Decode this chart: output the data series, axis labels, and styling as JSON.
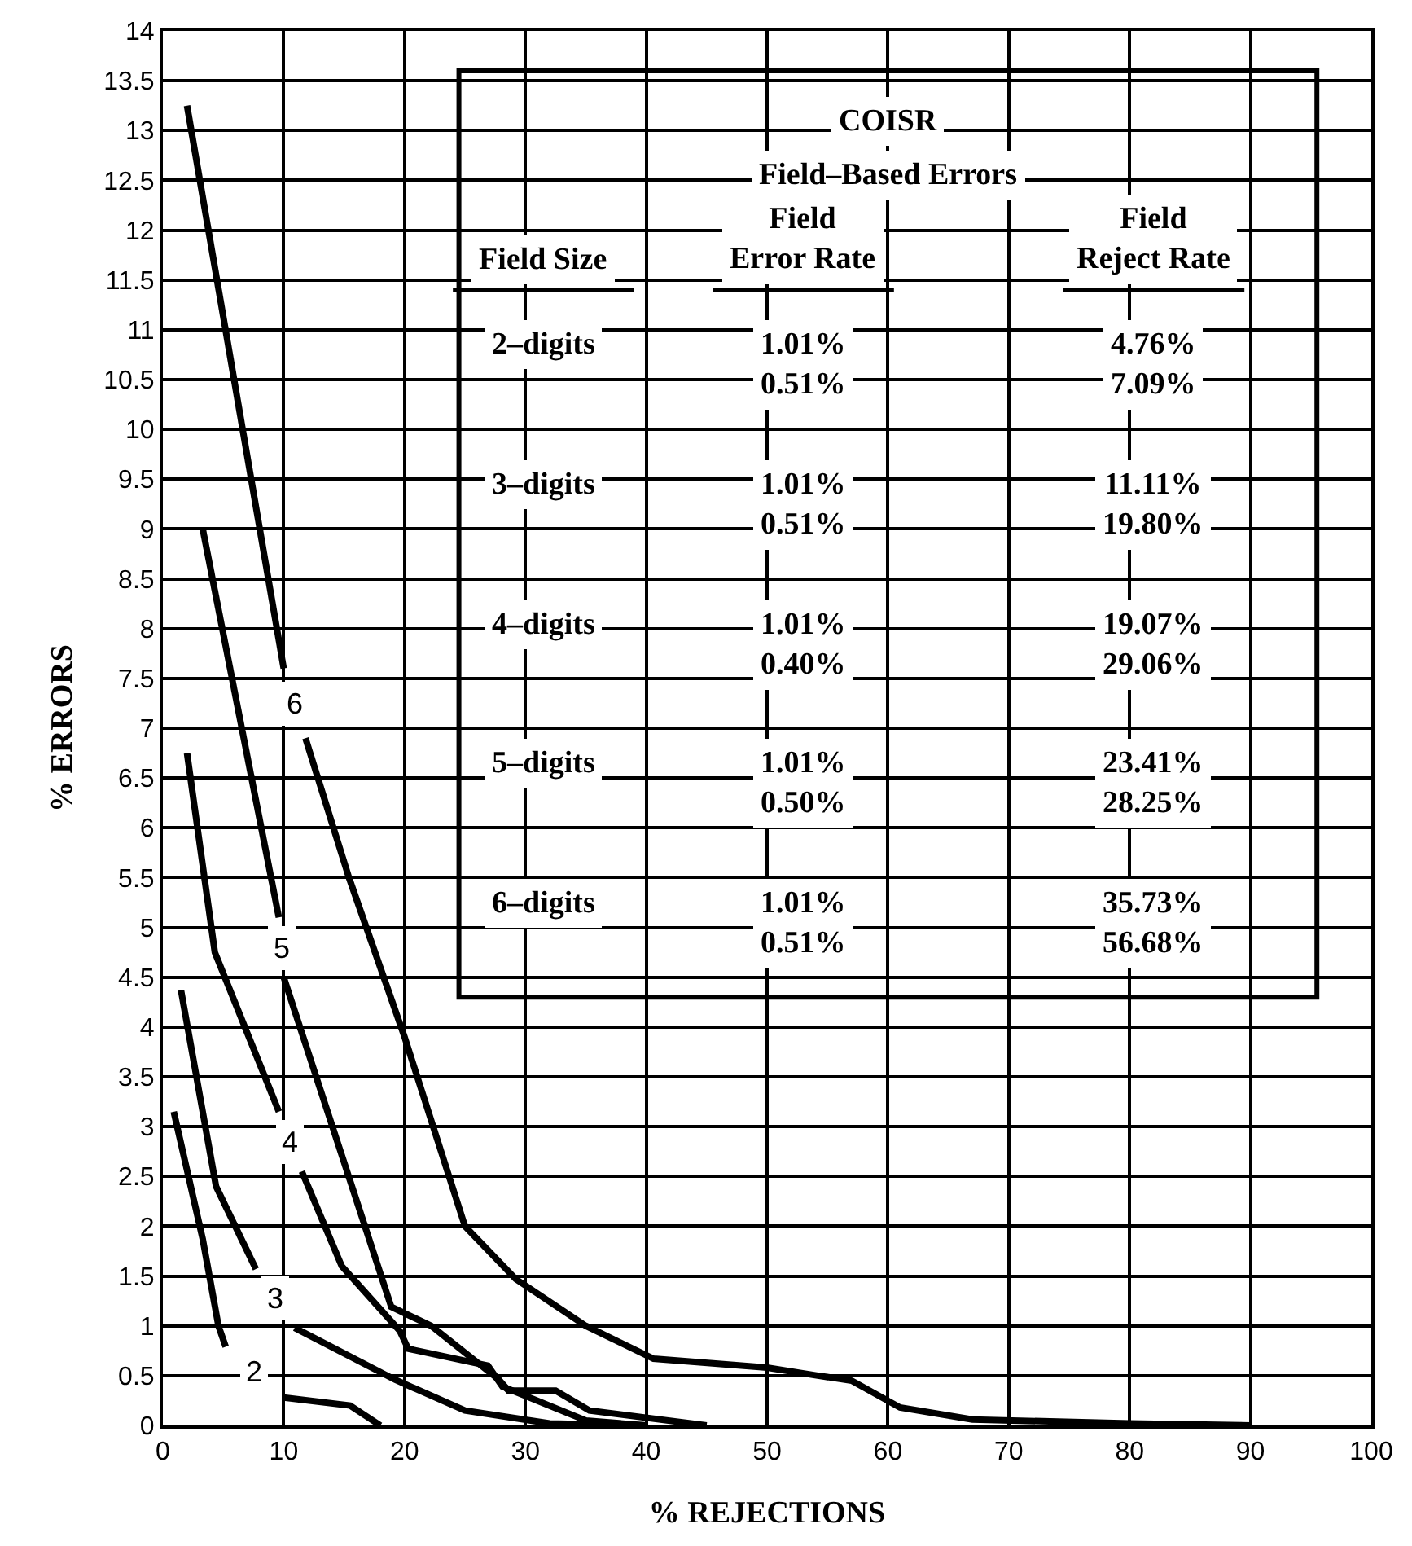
{
  "chart_data": {
    "type": "line",
    "xlabel": "% REJECTIONS",
    "ylabel": "% ERRORS",
    "xlim": [
      0,
      100
    ],
    "ylim": [
      0,
      14
    ],
    "xticks": [
      0,
      10,
      20,
      30,
      40,
      50,
      60,
      70,
      80,
      90,
      100
    ],
    "yticks": [
      0,
      0.5,
      1,
      1.5,
      2,
      2.5,
      3,
      3.5,
      4,
      4.5,
      5,
      5.5,
      6,
      6.5,
      7,
      7.5,
      8,
      8.5,
      9,
      9.5,
      10,
      10.5,
      11,
      11.5,
      12,
      12.5,
      13,
      13.5,
      14
    ],
    "grid": true,
    "legend": false,
    "marker": "none",
    "line_style": "solid",
    "series": [
      {
        "name": "6",
        "color": "#000000",
        "x": [
          2,
          10,
          null,
          11.8,
          15.4,
          20,
          25,
          29.2,
          35,
          40.6,
          50,
          54.2,
          57,
          61,
          67,
          80,
          90
        ],
        "values": [
          13.25,
          7.6,
          null,
          6.9,
          5.5,
          3.9,
          2.0,
          1.47,
          1.0,
          0.67,
          0.58,
          0.5,
          0.45,
          0.18,
          0.06,
          0.02,
          0
        ]
      },
      {
        "name": "5",
        "color": "#000000",
        "x": [
          3.3,
          9.6,
          null,
          10,
          18.9,
          22.2,
          27.8,
          28.6,
          32.5,
          35.3,
          45
        ],
        "values": [
          9.0,
          5.1,
          null,
          4.5,
          1.19,
          1.0,
          0.46,
          0.35,
          0.35,
          0.15,
          0
        ]
      },
      {
        "name": "4",
        "color": "#000000",
        "x": [
          2,
          4.3,
          9.6,
          null,
          11.5,
          14.8,
          19.6,
          20.3,
          26.9,
          28.1,
          35,
          40
        ],
        "values": [
          6.75,
          4.75,
          3.15,
          null,
          2.55,
          1.6,
          0.95,
          0.77,
          0.6,
          0.39,
          0.05,
          0
        ]
      },
      {
        "name": "3",
        "color": "#000000",
        "x": [
          1.5,
          4.4,
          7.7,
          null,
          10.9,
          19.2,
          25,
          32,
          40
        ],
        "values": [
          4.37,
          2.4,
          1.57,
          null,
          0.98,
          0.46,
          0.15,
          0.02,
          0
        ]
      },
      {
        "name": "2",
        "color": "#000000",
        "x": [
          0.9,
          3.3,
          4.6,
          5.2,
          null,
          10,
          15.5,
          18
        ],
        "values": [
          3.15,
          1.87,
          1.0,
          0.79,
          null,
          0.28,
          0.2,
          0
        ]
      }
    ],
    "annotations": [
      "COISR",
      "Field–Based Errors",
      "Field Size",
      "Field\nError Rate",
      "Field\nReject Rate",
      "2–digits",
      "1.01%\n0.51%",
      "4.76%\n7.09%",
      "3–digits",
      "1.01%\n0.51%",
      "11.11%\n19.80%",
      "4–digits",
      "1.01%\n0.40%",
      "19.07%\n29.06%",
      "5–digits",
      "1.01%\n0.50%",
      "23.41%\n28.25%",
      "6–digits",
      "1.01%\n0.51%",
      "35.73%\n56.68%"
    ]
  }
}
